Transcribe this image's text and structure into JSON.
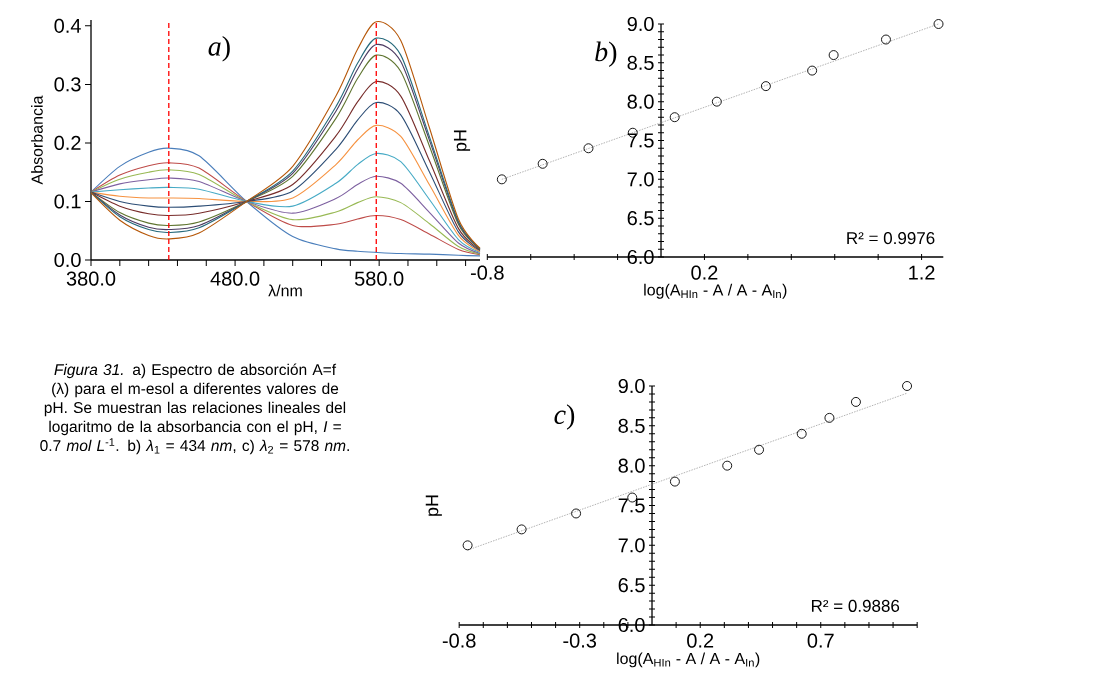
{
  "chart_data": [
    {
      "type": "line",
      "xlabel": "λ/nm",
      "ylabel": "Absorbancia",
      "annotations": [
        "*a*)",
        "*Figura 31.* a) Espectro de absorción A=f (λ) para el m-esol a diferentes valores de pH. Se muestran las relaciones lineales del logaritmo de la absorbancia con el pH, *I* = 0.7 *mol L*$^{-1}$. b) *λ*$_{1}$ = 434 *nm*, c) *λ*$_{2}$ = 578 *nm*."
      ],
      "xlim": [
        380,
        650
      ],
      "ylim": [
        0,
        0.41
      ],
      "xticks": [
        {
          "value": 380,
          "label": "380.0"
        },
        {
          "value": 400,
          "label": null
        },
        {
          "value": 420,
          "label": null
        },
        {
          "value": 440,
          "label": null
        },
        {
          "value": 460,
          "label": null
        },
        {
          "value": 480,
          "label": "480.0"
        },
        {
          "value": 500,
          "label": null
        },
        {
          "value": 520,
          "label": null
        },
        {
          "value": 540,
          "label": null
        },
        {
          "value": 560,
          "label": null
        },
        {
          "value": 580,
          "label": "580.0"
        },
        {
          "value": 600,
          "label": null
        },
        {
          "value": 620,
          "label": null
        },
        {
          "value": 640,
          "label": null
        }
      ],
      "yticks": [
        {
          "value": 0,
          "label": "0.0"
        },
        0.1,
        0.2,
        0.3,
        0.4
      ],
      "ref_lines": [
        {
          "axis": "x",
          "value": 434,
          "color": "#ff0000",
          "line_style": "dashed"
        },
        {
          "axis": "x",
          "value": 578,
          "color": "#ff0000",
          "line_style": "dashed"
        }
      ],
      "x": [
        380,
        400,
        420,
        434,
        455,
        488,
        520,
        550,
        565,
        578,
        595,
        615,
        635,
        650
      ],
      "series": [
        {
          "color": "#4a7ebb",
          "values": [
            0.116,
            0.16,
            0.184,
            0.191,
            0.178,
            0.1,
            0.04,
            0.019,
            0.015,
            0.013,
            0.011,
            0.01,
            0.008,
            0.007
          ]
        },
        {
          "color": "#be4b48",
          "values": [
            0.116,
            0.145,
            0.161,
            0.166,
            0.157,
            0.1,
            0.059,
            0.061,
            0.07,
            0.076,
            0.069,
            0.044,
            0.018,
            0.009
          ]
        },
        {
          "color": "#98b954",
          "values": [
            0.116,
            0.138,
            0.15,
            0.154,
            0.146,
            0.1,
            0.069,
            0.082,
            0.098,
            0.108,
            0.098,
            0.062,
            0.023,
            0.01
          ]
        },
        {
          "color": "#7d60a0",
          "values": [
            0.116,
            0.13,
            0.137,
            0.14,
            0.134,
            0.1,
            0.08,
            0.105,
            0.129,
            0.143,
            0.131,
            0.081,
            0.029,
            0.011
          ]
        },
        {
          "color": "#46aac5",
          "values": [
            0.116,
            0.12,
            0.123,
            0.124,
            0.121,
            0.1,
            0.092,
            0.131,
            0.163,
            0.182,
            0.168,
            0.103,
            0.035,
            0.013
          ]
        },
        {
          "color": "#f69240",
          "values": [
            0.116,
            0.109,
            0.106,
            0.106,
            0.105,
            0.1,
            0.106,
            0.163,
            0.205,
            0.23,
            0.211,
            0.128,
            0.042,
            0.014
          ]
        },
        {
          "color": "#2c4d75",
          "values": [
            0.116,
            0.1,
            0.092,
            0.09,
            0.092,
            0.1,
            0.118,
            0.189,
            0.239,
            0.269,
            0.248,
            0.15,
            0.048,
            0.016
          ]
        },
        {
          "color": "#772c2a",
          "values": [
            0.116,
            0.092,
            0.079,
            0.076,
            0.08,
            0.1,
            0.129,
            0.212,
            0.27,
            0.305,
            0.28,
            0.169,
            0.054,
            0.017
          ]
        },
        {
          "color": "#5f7530",
          "values": [
            0.116,
            0.081,
            0.063,
            0.059,
            0.065,
            0.1,
            0.143,
            0.242,
            0.31,
            0.35,
            0.322,
            0.194,
            0.061,
            0.018
          ]
        },
        {
          "color": "#4d3b62",
          "values": [
            0.116,
            0.077,
            0.056,
            0.052,
            0.059,
            0.1,
            0.148,
            0.254,
            0.326,
            0.368,
            0.339,
            0.204,
            0.064,
            0.019
          ]
        },
        {
          "color": "#276a7c",
          "values": [
            0.116,
            0.074,
            0.052,
            0.047,
            0.055,
            0.1,
            0.152,
            0.262,
            0.336,
            0.379,
            0.35,
            0.21,
            0.066,
            0.019
          ]
        },
        {
          "color": "#b65708",
          "values": [
            0.115,
            0.068,
            0.042,
            0.036,
            0.046,
            0.1,
            0.16,
            0.28,
            0.36,
            0.407,
            0.375,
            0.225,
            0.07,
            0.02
          ]
        }
      ]
    },
    {
      "type": "scatter",
      "xlabel": "log(A$_{HIn}$ - A / A - A$_{In}$)",
      "ylabel": "pH",
      "annotations": [
        "*b*)",
        "R² = 0.9976"
      ],
      "xlim": [
        -0.8,
        1.3
      ],
      "ylim": [
        6,
        9
      ],
      "xticks": [
        -0.8,
        {
          "value": -0.6,
          "label": null
        },
        {
          "value": -0.4,
          "label": null
        },
        {
          "value": -0.2,
          "label": null
        },
        0.2,
        {
          "value": 0.4,
          "label": null
        },
        {
          "value": 0.6,
          "label": null
        },
        {
          "value": 0.8,
          "label": null
        },
        {
          "value": 1.0,
          "label": null
        },
        1.2
      ],
      "yticks": [
        {
          "value": 6,
          "label": "6.0"
        },
        {
          "value": 6.1,
          "label": null
        },
        {
          "value": 6.2,
          "label": null
        },
        {
          "value": 6.3,
          "label": null
        },
        {
          "value": 6.4,
          "label": null
        },
        6.5,
        {
          "value": 6.6,
          "label": null
        },
        {
          "value": 6.7,
          "label": null
        },
        {
          "value": 6.8,
          "label": null
        },
        {
          "value": 6.9,
          "label": null
        },
        {
          "value": 7,
          "label": "7.0"
        },
        {
          "value": 7.1,
          "label": null
        },
        {
          "value": 7.2,
          "label": null
        },
        {
          "value": 7.3,
          "label": null
        },
        {
          "value": 7.4,
          "label": null
        },
        7.5,
        {
          "value": 7.6,
          "label": null
        },
        {
          "value": 7.7,
          "label": null
        },
        {
          "value": 7.8,
          "label": null
        },
        {
          "value": 7.9,
          "label": null
        },
        {
          "value": 8,
          "label": "8.0"
        },
        {
          "value": 8.1,
          "label": null
        },
        {
          "value": 8.2,
          "label": null
        },
        {
          "value": 8.3,
          "label": null
        },
        {
          "value": 8.4,
          "label": null
        },
        8.5,
        {
          "value": 8.6,
          "label": null
        },
        {
          "value": 8.7,
          "label": null
        },
        {
          "value": 8.8,
          "label": null
        },
        {
          "value": 8.9,
          "label": null
        },
        {
          "value": 9,
          "label": "9.0"
        }
      ],
      "series": [
        {
          "type": "scatter",
          "color": "#000000",
          "marker": "circle",
          "x": [
            -0.733,
            -0.545,
            -0.334,
            -0.13,
            0.063,
            0.257,
            0.483,
            0.696,
            0.795,
            1.036,
            1.278
          ],
          "values": [
            7.0,
            7.2,
            7.4,
            7.6,
            7.8,
            8.0,
            8.2,
            8.4,
            8.6,
            8.8,
            9.0
          ]
        },
        {
          "type": "line",
          "color": "#808080",
          "line_style": "dotted",
          "x": [
            -0.733,
            1.278
          ],
          "values": [
            7.0,
            9.0
          ]
        }
      ]
    },
    {
      "type": "scatter",
      "xlabel": "log(A$_{HIn}$ - A / A - A$_{In}$)",
      "ylabel": "pH",
      "annotations": [
        "*c*)",
        "R² = 0.9886"
      ],
      "xlim": [
        -0.8,
        1.1
      ],
      "ylim": [
        6,
        9
      ],
      "xticks": [
        -0.8,
        {
          "value": -0.7,
          "label": null
        },
        {
          "value": -0.6,
          "label": null
        },
        {
          "value": -0.5,
          "label": null
        },
        {
          "value": -0.4,
          "label": null
        },
        -0.3,
        {
          "value": -0.2,
          "label": null
        },
        {
          "value": -0.1,
          "label": null
        },
        {
          "value": 0.1,
          "label": null
        },
        0.2,
        {
          "value": 0.3,
          "label": null
        },
        {
          "value": 0.4,
          "label": null
        },
        {
          "value": 0.5,
          "label": null
        },
        {
          "value": 0.6,
          "label": null
        },
        0.7,
        {
          "value": 0.8,
          "label": null
        },
        {
          "value": 0.9,
          "label": null
        },
        {
          "value": 1.0,
          "label": null
        },
        {
          "value": 1.1,
          "label": null
        }
      ],
      "yticks": [
        {
          "value": 6,
          "label": "6.0"
        },
        {
          "value": 6.1,
          "label": null
        },
        {
          "value": 6.2,
          "label": null
        },
        {
          "value": 6.3,
          "label": null
        },
        {
          "value": 6.4,
          "label": null
        },
        6.5,
        {
          "value": 6.6,
          "label": null
        },
        {
          "value": 6.7,
          "label": null
        },
        {
          "value": 6.8,
          "label": null
        },
        {
          "value": 6.9,
          "label": null
        },
        {
          "value": 7,
          "label": "7.0"
        },
        {
          "value": 7.1,
          "label": null
        },
        {
          "value": 7.2,
          "label": null
        },
        {
          "value": 7.3,
          "label": null
        },
        {
          "value": 7.4,
          "label": null
        },
        7.5,
        {
          "value": 7.6,
          "label": null
        },
        {
          "value": 7.7,
          "label": null
        },
        {
          "value": 7.8,
          "label": null
        },
        {
          "value": 7.9,
          "label": null
        },
        {
          "value": 8,
          "label": "8.0"
        },
        {
          "value": 8.1,
          "label": null
        },
        {
          "value": 8.2,
          "label": null
        },
        {
          "value": 8.3,
          "label": null
        },
        {
          "value": 8.4,
          "label": null
        },
        8.5,
        {
          "value": 8.6,
          "label": null
        },
        {
          "value": 8.7,
          "label": null
        },
        {
          "value": 8.8,
          "label": null
        },
        {
          "value": 8.9,
          "label": null
        },
        {
          "value": 9,
          "label": "9.0"
        }
      ],
      "series": [
        {
          "type": "scatter",
          "color": "#000000",
          "marker": "circle",
          "x": [
            -0.765,
            -0.541,
            -0.315,
            -0.082,
            0.095,
            0.312,
            0.444,
            0.621,
            0.736,
            0.846,
            1.058
          ],
          "values": [
            7.0,
            7.2,
            7.4,
            7.6,
            7.8,
            8.0,
            8.2,
            8.4,
            8.6,
            8.8,
            9.0
          ]
        },
        {
          "type": "line",
          "color": "#808080",
          "line_style": "dotted",
          "x": [
            -0.765,
            1.058
          ],
          "values": [
            6.94,
            8.91
          ]
        }
      ]
    }
  ]
}
